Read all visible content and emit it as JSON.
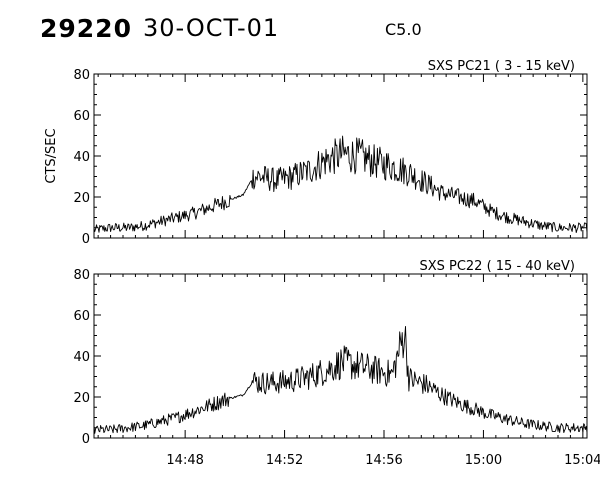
{
  "header": {
    "event_id": "29220",
    "date": "30-OCT-01",
    "flare_class": "C5.0"
  },
  "chart_data": [
    {
      "type": "line",
      "title": "SXS PC21  (  3 - 15 keV)",
      "ylabel": "CTS/SEC",
      "xlabel": "",
      "xlim": [
        "14:44:20",
        "15:04:10"
      ],
      "ylim": [
        0,
        80
      ],
      "y_ticks": [
        "0",
        "20",
        "40",
        "60",
        "80"
      ],
      "x_ticks": [
        "14:48",
        "14:52",
        "14:56",
        "15:00",
        "15:04"
      ],
      "grid": false,
      "series": [
        {
          "x": [
            "14:44:20",
            "14:45:00",
            "14:45:40",
            "14:46:20",
            "14:47:00",
            "14:47:40",
            "14:48:20",
            "14:49:00",
            "14:49:40",
            "14:50:20",
            "14:50:45",
            "14:51:00",
            "14:51:40",
            "14:52:20",
            "14:53:00",
            "14:53:40",
            "14:54:20",
            "14:55:00",
            "14:55:40",
            "14:56:20",
            "14:57:00",
            "14:57:40",
            "14:58:20",
            "14:59:00",
            "14:59:40",
            "15:00:20",
            "15:01:00",
            "15:01:40",
            "15:02:20",
            "15:03:00",
            "15:03:40",
            "15:04:10"
          ],
          "values": [
            4,
            5,
            5,
            6,
            8,
            10,
            12,
            15,
            18,
            21,
            30,
            30,
            28,
            30,
            33,
            38,
            41,
            40,
            37,
            35,
            32,
            27,
            22,
            20,
            18,
            13,
            10,
            8,
            6,
            5,
            5,
            5
          ]
        }
      ]
    },
    {
      "type": "line",
      "title": "SXS PC22  ( 15 - 40 keV)",
      "ylabel": "",
      "xlabel": "",
      "xlim": [
        "14:44:20",
        "15:04:10"
      ],
      "ylim": [
        0,
        80
      ],
      "y_ticks": [
        "0",
        "20",
        "40",
        "60",
        "80"
      ],
      "x_ticks": [
        "14:48",
        "14:52",
        "14:56",
        "15:00",
        "15:04"
      ],
      "grid": false,
      "series": [
        {
          "x": [
            "14:44:20",
            "14:45:00",
            "14:45:40",
            "14:46:20",
            "14:47:00",
            "14:47:40",
            "14:48:20",
            "14:49:00",
            "14:49:40",
            "14:50:20",
            "14:50:45",
            "14:51:00",
            "14:51:40",
            "14:52:20",
            "14:53:00",
            "14:53:40",
            "14:54:20",
            "14:55:00",
            "14:55:40",
            "14:56:20",
            "14:56:50",
            "14:57:00",
            "14:57:40",
            "14:58:20",
            "14:59:00",
            "14:59:40",
            "15:00:20",
            "15:01:00",
            "15:01:40",
            "15:02:20",
            "15:03:00",
            "15:03:40",
            "15:04:10"
          ],
          "values": [
            4,
            4,
            5,
            6,
            8,
            10,
            13,
            16,
            19,
            21,
            28,
            27,
            27,
            28,
            30,
            33,
            37,
            35,
            33,
            31,
            52,
            29,
            26,
            21,
            17,
            14,
            11,
            9,
            7,
            6,
            5,
            5,
            5
          ]
        }
      ]
    }
  ]
}
